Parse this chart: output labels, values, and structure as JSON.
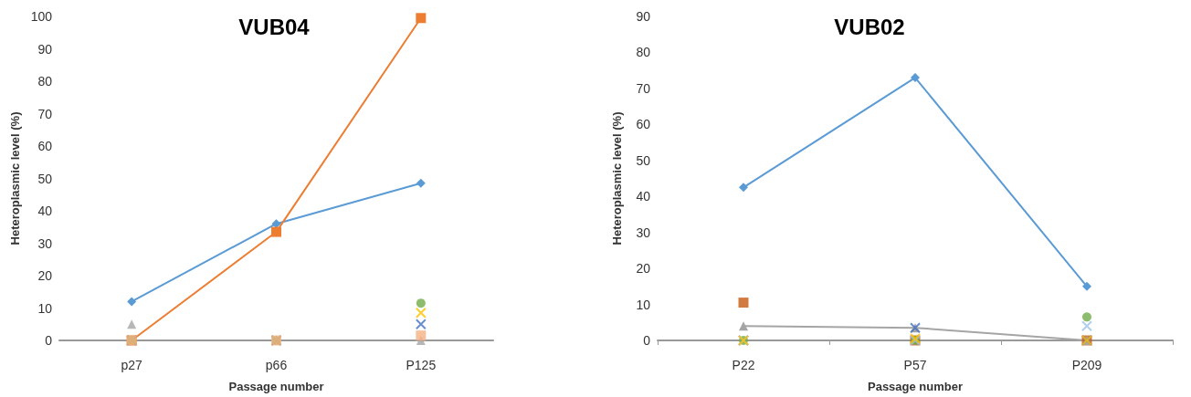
{
  "chart_data": [
    {
      "type": "line",
      "title": "VUB04",
      "xlabel": "Passage number",
      "ylabel": "Heteroplasmic level (%)",
      "categories": [
        "p27",
        "p66",
        "P125"
      ],
      "ylim": [
        0,
        100
      ],
      "yticks": [
        0,
        10,
        20,
        30,
        40,
        50,
        60,
        70,
        80,
        90,
        100
      ],
      "grid": false,
      "series": [
        {
          "color": "#5b9bd5",
          "marker": "diamond",
          "values": [
            12,
            36,
            48.5
          ]
        },
        {
          "color": "#ed7d31",
          "marker": "square",
          "values": [
            0,
            33.5,
            99.5
          ]
        },
        {
          "type": "scatter",
          "color": "#a5a5a5",
          "marker": "triangle",
          "values": [
            5,
            0,
            0
          ]
        },
        {
          "type": "scatter",
          "color": "#ffc000",
          "marker": "cross",
          "values": [
            0,
            0,
            8.5
          ]
        },
        {
          "type": "scatter",
          "color": "#4472c4",
          "marker": "cross",
          "values": [
            0,
            0,
            5
          ]
        },
        {
          "type": "scatter",
          "color": "#70ad47",
          "marker": "circle",
          "values": [
            0,
            0,
            11.5
          ]
        },
        {
          "type": "scatter",
          "color": "#f4b183",
          "marker": "square",
          "values": [
            0,
            0,
            1.5
          ]
        }
      ]
    },
    {
      "type": "line",
      "title": "VUB02",
      "xlabel": "Passage number",
      "ylabel": "Heteroplasmic level (%)",
      "categories": [
        "P22",
        "P57",
        "P209"
      ],
      "ylim": [
        0,
        90
      ],
      "yticks": [
        0,
        10,
        20,
        30,
        40,
        50,
        60,
        70,
        80,
        90
      ],
      "grid": false,
      "series": [
        {
          "color": "#5b9bd5",
          "marker": "diamond",
          "values": [
            42.5,
            73,
            15
          ]
        },
        {
          "type": "scatter",
          "color": "#c55a11",
          "marker": "square",
          "values": [
            10.5,
            0,
            0
          ]
        },
        {
          "color": "#a5a5a5",
          "marker": "triangle",
          "values": [
            4,
            3.5,
            0
          ]
        },
        {
          "type": "scatter",
          "color": "#4472c4",
          "marker": "cross",
          "values": [
            0,
            3.5,
            0
          ]
        },
        {
          "type": "scatter",
          "color": "#70ad47",
          "marker": "circle",
          "values": [
            0,
            0,
            6.5
          ]
        },
        {
          "type": "scatter",
          "color": "#9dc3e6",
          "marker": "cross",
          "values": [
            0,
            0,
            4
          ]
        },
        {
          "type": "scatter",
          "color": "#ffc000",
          "marker": "cross",
          "values": [
            0,
            0.5,
            0
          ]
        }
      ]
    }
  ]
}
